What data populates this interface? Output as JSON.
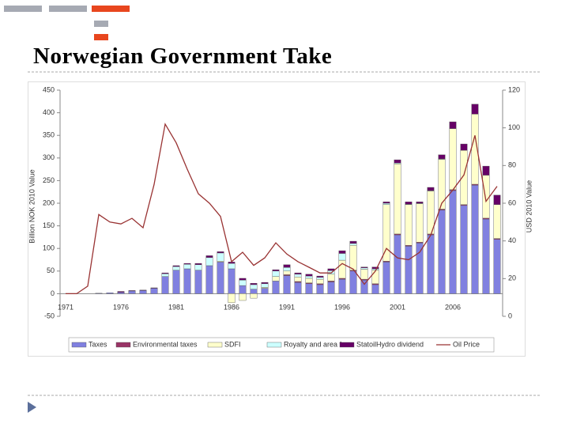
{
  "slide_title": "Norwegian Government Take",
  "chart_data": {
    "type": "bar",
    "y_label": "Billion NOK 2010 Value",
    "y2_label": "USD 2010 Value",
    "categories": [
      "1971",
      null,
      null,
      null,
      null,
      "1976",
      null,
      null,
      null,
      null,
      "1981",
      null,
      null,
      null,
      null,
      "1986",
      null,
      null,
      null,
      null,
      "1991",
      null,
      null,
      null,
      null,
      "1996",
      null,
      null,
      null,
      null,
      "2001",
      null,
      null,
      null,
      null,
      "2006",
      null,
      null,
      null,
      null
    ],
    "series": [
      {
        "name": "Taxes",
        "color": "#8080e0",
        "values": [
          0,
          0,
          0,
          1,
          2,
          3,
          6,
          7,
          12,
          38,
          52,
          55,
          52,
          62,
          70,
          55,
          18,
          10,
          12,
          28,
          40,
          25,
          22,
          20,
          26,
          32,
          50,
          30,
          20,
          70,
          130,
          105,
          112,
          130,
          185,
          228,
          195,
          240,
          165,
          120
        ]
      },
      {
        "name": "Environmental taxes",
        "color": "#993366",
        "values": [
          0,
          0,
          0,
          0,
          0,
          0,
          0,
          0,
          0,
          0,
          0,
          0,
          0,
          0,
          0,
          0,
          0,
          0,
          0,
          0,
          2,
          2,
          2,
          2,
          2,
          2,
          2,
          2,
          2,
          2,
          2,
          2,
          2,
          2,
          2,
          2,
          2,
          2,
          2,
          2
        ]
      },
      {
        "name": "SDFI",
        "color": "#ffffcc",
        "values": [
          0,
          0,
          0,
          0,
          0,
          0,
          0,
          0,
          0,
          0,
          0,
          0,
          0,
          0,
          2,
          -20,
          -15,
          -10,
          2,
          10,
          8,
          10,
          10,
          10,
          15,
          40,
          55,
          22,
          30,
          125,
          155,
          90,
          85,
          95,
          110,
          135,
          120,
          155,
          95,
          75
        ]
      },
      {
        "name": "Royalty and area fee",
        "color": "#ccffff",
        "values": [
          0,
          0,
          0,
          0,
          0,
          0,
          0,
          0,
          0,
          6,
          8,
          10,
          12,
          18,
          18,
          12,
          12,
          10,
          8,
          12,
          8,
          6,
          5,
          4,
          8,
          15,
          4,
          3,
          3,
          3,
          2,
          1,
          1,
          1,
          1,
          0,
          0,
          0,
          0,
          0
        ]
      },
      {
        "name": "StatoilHydro dividend",
        "color": "#660066",
        "values": [
          0,
          0,
          0,
          0,
          0,
          2,
          1,
          1,
          1,
          2,
          2,
          2,
          3,
          4,
          3,
          3,
          4,
          3,
          3,
          3,
          6,
          3,
          4,
          3,
          4,
          6,
          5,
          2,
          4,
          3,
          7,
          5,
          3,
          7,
          9,
          15,
          14,
          22,
          20,
          21
        ]
      },
      {
        "name": "Oil Price",
        "color": "#993333",
        "type": "line",
        "axis": "y2",
        "values": [
          12,
          12,
          16,
          54,
          50,
          49,
          52,
          47,
          70,
          102,
          92,
          78,
          65,
          60,
          53,
          29,
          34,
          27,
          31,
          39,
          33,
          29,
          26,
          23,
          23,
          28,
          25,
          17,
          24,
          36,
          31,
          30,
          34,
          43,
          60,
          67,
          75,
          96,
          61,
          69
        ]
      }
    ],
    "ylim": [
      -50,
      450
    ],
    "yticks": [
      -50,
      0,
      50,
      100,
      150,
      200,
      250,
      300,
      350,
      400,
      450
    ],
    "y2lim": [
      0,
      120
    ],
    "y2ticks": [
      0,
      20,
      40,
      60,
      80,
      100,
      120
    ],
    "legend": "bottom",
    "grid": false
  }
}
